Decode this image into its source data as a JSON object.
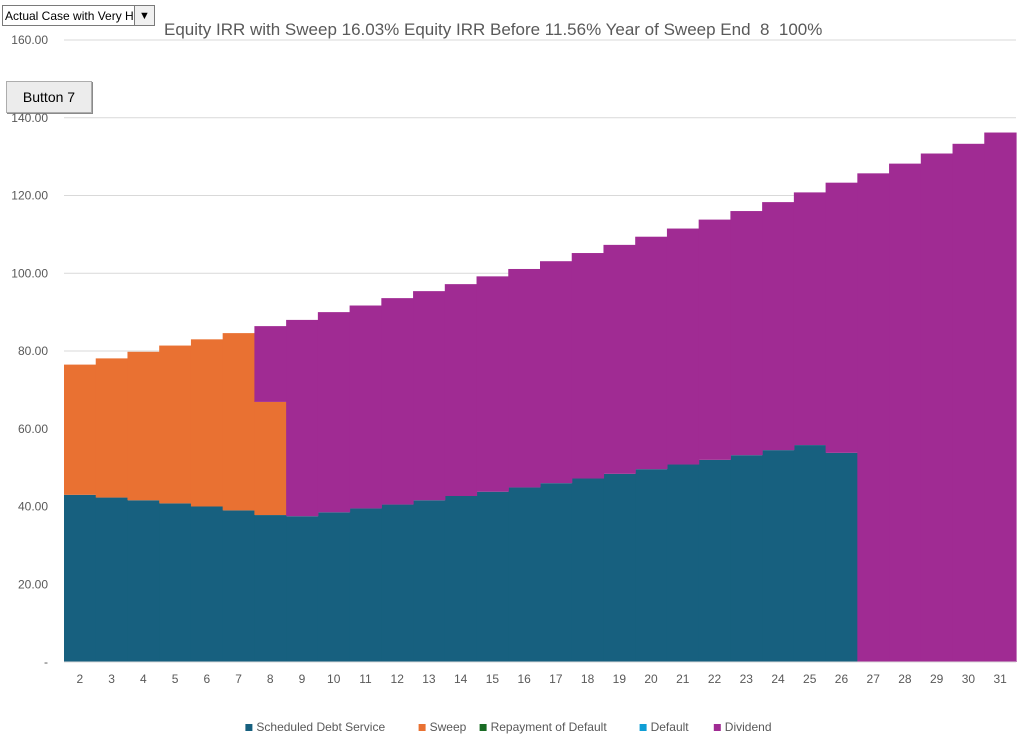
{
  "dropdown": {
    "selected": "Actual Case with Very Hig",
    "arrow_icon": "triangle-down-icon"
  },
  "button7": {
    "label": "Button 7"
  },
  "chart_data": {
    "type": "stepped-stacked-area",
    "title": "Equity IRR with Sweep 16.03% Equity IRR Before 11.56% Year of Sweep End  8  100%",
    "xlabel": "",
    "ylabel": "",
    "ylim": [
      0,
      160
    ],
    "ytick_labels": [
      "-",
      "20.00",
      "40.00",
      "60.00",
      "80.00",
      "100.00",
      "120.00",
      "140.00",
      "160.00"
    ],
    "ytick_values": [
      0,
      20,
      40,
      60,
      80,
      100,
      120,
      140,
      160
    ],
    "grid": true,
    "legend_position": "bottom",
    "categories": [
      "2",
      "3",
      "4",
      "5",
      "6",
      "7",
      "8",
      "9",
      "10",
      "11",
      "12",
      "13",
      "14",
      "15",
      "16",
      "17",
      "18",
      "19",
      "20",
      "21",
      "22",
      "23",
      "24",
      "25",
      "26",
      "27",
      "28",
      "29",
      "30",
      "31"
    ],
    "series": [
      {
        "name": "Scheduled Debt Service",
        "color": "#17607f",
        "values": [
          43.0,
          42.3,
          41.6,
          40.8,
          40.0,
          39.0,
          37.8,
          37.5,
          38.5,
          39.5,
          40.5,
          41.6,
          42.7,
          43.8,
          44.9,
          46.0,
          47.2,
          48.4,
          49.6,
          50.8,
          52.0,
          53.2,
          54.5,
          55.8,
          53.8,
          0,
          0,
          0,
          0,
          0
        ]
      },
      {
        "name": "Sweep",
        "color": "#e97132",
        "values": [
          33.5,
          35.8,
          38.2,
          40.6,
          43.0,
          45.6,
          29.1,
          0,
          0,
          0,
          0,
          0,
          0,
          0,
          0,
          0,
          0,
          0,
          0,
          0,
          0,
          0,
          0,
          0,
          0,
          0,
          0,
          0,
          0,
          0
        ]
      },
      {
        "name": "Repayment of Default",
        "color": "#196b24",
        "values": [
          0,
          0,
          0,
          0,
          0,
          0,
          0,
          0,
          0,
          0,
          0,
          0,
          0,
          0,
          0,
          0,
          0,
          0,
          0,
          0,
          0,
          0,
          0,
          0,
          0,
          0,
          0,
          0,
          0,
          0
        ]
      },
      {
        "name": "Default",
        "color": "#0f9ed5",
        "values": [
          0,
          0,
          0,
          0,
          0,
          0,
          0,
          0,
          0,
          0,
          0,
          0,
          0,
          0,
          0,
          0,
          0,
          0,
          0,
          0,
          0,
          0,
          0,
          0,
          0,
          0,
          0,
          0,
          0,
          0
        ]
      },
      {
        "name": "Dividend",
        "color": "#a02b93",
        "values": [
          0,
          0,
          0,
          0,
          0,
          0,
          19.5,
          50.5,
          51.5,
          52.2,
          53.1,
          53.8,
          54.5,
          55.4,
          56.2,
          57.1,
          58.0,
          58.9,
          59.8,
          60.7,
          61.8,
          62.8,
          63.8,
          65.0,
          69.5,
          125.7,
          128.2,
          130.8,
          133.3,
          136.2
        ]
      }
    ]
  }
}
